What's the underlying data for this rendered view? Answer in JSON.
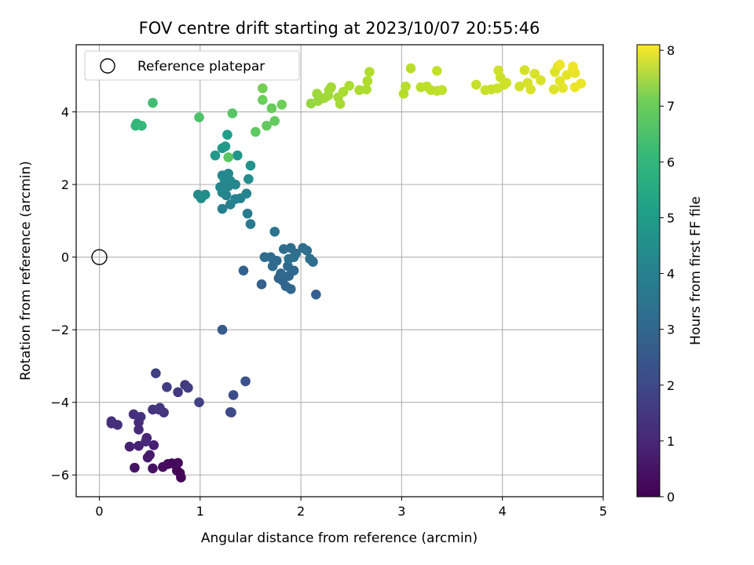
{
  "chart_data": {
    "type": "scatter",
    "title": "FOV centre drift starting at 2023/10/07 20:55:46",
    "xlabel": "Angular distance from reference (arcmin)",
    "ylabel": "Rotation from reference (arcmin)",
    "xlim": [
      -0.23,
      5.0
    ],
    "ylim": [
      -6.6,
      5.85
    ],
    "xticks": [
      "0",
      "1",
      "2",
      "3",
      "4",
      "5"
    ],
    "xtick_values": [
      0,
      1,
      2,
      3,
      4,
      5
    ],
    "yticks": [
      "−6",
      "−4",
      "−2",
      "0",
      "2",
      "4"
    ],
    "ytick_values": [
      -6,
      -4,
      -2,
      0,
      2,
      4
    ],
    "grid": true,
    "colormap": "viridis",
    "colorbar": {
      "label": "Hours from first FF file",
      "range": [
        0,
        8.1
      ],
      "ticks": [
        "0",
        "1",
        "2",
        "3",
        "4",
        "5",
        "6",
        "7",
        "8"
      ],
      "tick_values": [
        0,
        1,
        2,
        3,
        4,
        5,
        6,
        7,
        8
      ]
    },
    "reference_point": {
      "x": 0,
      "y": 0,
      "marker": "open-circle"
    },
    "legend": {
      "position": "top-left",
      "entries": [
        "Reference platepar"
      ]
    },
    "points": [
      {
        "x": 0.81,
        "y": -6.07,
        "t": 0.05
      },
      {
        "x": 0.8,
        "y": -5.95,
        "t": 0.1
      },
      {
        "x": 0.77,
        "y": -5.88,
        "t": 0.12
      },
      {
        "x": 0.72,
        "y": -5.68,
        "t": 0.15
      },
      {
        "x": 0.68,
        "y": -5.7,
        "t": 0.2
      },
      {
        "x": 0.78,
        "y": -5.67,
        "t": 0.22
      },
      {
        "x": 0.63,
        "y": -5.78,
        "t": 0.3
      },
      {
        "x": 0.35,
        "y": -5.8,
        "t": 0.4
      },
      {
        "x": 0.53,
        "y": -5.82,
        "t": 0.38
      },
      {
        "x": 0.48,
        "y": -5.52,
        "t": 0.55
      },
      {
        "x": 0.5,
        "y": -5.45,
        "t": 0.6
      },
      {
        "x": 0.54,
        "y": -5.18,
        "t": 0.7
      },
      {
        "x": 0.3,
        "y": -5.22,
        "t": 0.75
      },
      {
        "x": 0.39,
        "y": -5.2,
        "t": 0.78
      },
      {
        "x": 0.47,
        "y": -4.98,
        "t": 0.85
      },
      {
        "x": 0.46,
        "y": -5.08,
        "t": 0.9
      },
      {
        "x": 0.39,
        "y": -4.75,
        "t": 0.95
      },
      {
        "x": 0.39,
        "y": -4.55,
        "t": 1.0
      },
      {
        "x": 0.12,
        "y": -4.58,
        "t": 1.05
      },
      {
        "x": 0.18,
        "y": -4.62,
        "t": 1.08
      },
      {
        "x": 0.12,
        "y": -4.52,
        "t": 1.1
      },
      {
        "x": 0.34,
        "y": -4.33,
        "t": 1.12
      },
      {
        "x": 0.41,
        "y": -4.4,
        "t": 1.15
      },
      {
        "x": 0.53,
        "y": -4.2,
        "t": 1.2
      },
      {
        "x": 0.59,
        "y": -4.2,
        "t": 1.25
      },
      {
        "x": 0.64,
        "y": -4.28,
        "t": 1.3
      },
      {
        "x": 0.6,
        "y": -4.15,
        "t": 1.32
      },
      {
        "x": 0.78,
        "y": -3.72,
        "t": 1.35
      },
      {
        "x": 0.85,
        "y": -3.52,
        "t": 1.4
      },
      {
        "x": 0.88,
        "y": -3.6,
        "t": 1.42
      },
      {
        "x": 0.67,
        "y": -3.58,
        "t": 1.45
      },
      {
        "x": 0.56,
        "y": -3.2,
        "t": 1.5
      },
      {
        "x": 0.99,
        "y": -4.0,
        "t": 1.6
      },
      {
        "x": 1.3,
        "y": -4.27,
        "t": 1.75
      },
      {
        "x": 1.31,
        "y": -4.28,
        "t": 1.8
      },
      {
        "x": 1.33,
        "y": -3.8,
        "t": 1.9
      },
      {
        "x": 1.45,
        "y": -3.42,
        "t": 2.0
      },
      {
        "x": 1.22,
        "y": -2.0,
        "t": 2.3
      },
      {
        "x": 2.15,
        "y": -1.03,
        "t": 2.45
      },
      {
        "x": 1.61,
        "y": -0.75,
        "t": 2.5
      },
      {
        "x": 1.43,
        "y": -0.37,
        "t": 2.55
      },
      {
        "x": 1.78,
        "y": -0.58,
        "t": 2.6
      },
      {
        "x": 1.82,
        "y": -0.65,
        "t": 2.62
      },
      {
        "x": 1.85,
        "y": -0.8,
        "t": 2.65
      },
      {
        "x": 1.9,
        "y": -0.88,
        "t": 2.68
      },
      {
        "x": 1.88,
        "y": -0.52,
        "t": 2.7
      },
      {
        "x": 1.8,
        "y": -0.45,
        "t": 2.72
      },
      {
        "x": 1.93,
        "y": -0.37,
        "t": 2.74
      },
      {
        "x": 1.87,
        "y": -0.25,
        "t": 2.75
      },
      {
        "x": 1.72,
        "y": -0.25,
        "t": 2.78
      },
      {
        "x": 1.76,
        "y": -0.1,
        "t": 2.8
      },
      {
        "x": 1.7,
        "y": 0.0,
        "t": 2.82
      },
      {
        "x": 1.64,
        "y": 0.0,
        "t": 2.84
      },
      {
        "x": 1.83,
        "y": 0.22,
        "t": 2.86
      },
      {
        "x": 1.9,
        "y": 0.25,
        "t": 2.88
      },
      {
        "x": 1.95,
        "y": 0.1,
        "t": 2.9
      },
      {
        "x": 2.02,
        "y": 0.25,
        "t": 2.92
      },
      {
        "x": 2.06,
        "y": 0.18,
        "t": 2.94
      },
      {
        "x": 2.09,
        "y": -0.05,
        "t": 2.96
      },
      {
        "x": 2.12,
        "y": -0.13,
        "t": 2.98
      },
      {
        "x": 1.93,
        "y": 0.0,
        "t": 3.0
      },
      {
        "x": 1.88,
        "y": -0.05,
        "t": 3.02
      },
      {
        "x": 1.74,
        "y": 0.7,
        "t": 3.1
      },
      {
        "x": 1.5,
        "y": 0.91,
        "t": 3.3
      },
      {
        "x": 1.47,
        "y": 1.2,
        "t": 3.4
      },
      {
        "x": 1.22,
        "y": 1.33,
        "t": 3.5
      },
      {
        "x": 1.3,
        "y": 1.45,
        "t": 3.55
      },
      {
        "x": 1.35,
        "y": 1.6,
        "t": 3.6
      },
      {
        "x": 1.4,
        "y": 1.62,
        "t": 3.62
      },
      {
        "x": 1.46,
        "y": 1.75,
        "t": 3.65
      },
      {
        "x": 1.26,
        "y": 1.7,
        "t": 3.68
      },
      {
        "x": 1.22,
        "y": 1.78,
        "t": 3.7
      },
      {
        "x": 1.2,
        "y": 1.93,
        "t": 3.72
      },
      {
        "x": 1.28,
        "y": 1.95,
        "t": 3.74
      },
      {
        "x": 1.35,
        "y": 2.0,
        "t": 3.76
      },
      {
        "x": 1.3,
        "y": 2.1,
        "t": 3.78
      },
      {
        "x": 1.24,
        "y": 2.15,
        "t": 3.8
      },
      {
        "x": 1.28,
        "y": 2.3,
        "t": 3.82
      },
      {
        "x": 1.22,
        "y": 2.25,
        "t": 3.84
      },
      {
        "x": 0.98,
        "y": 1.72,
        "t": 3.9
      },
      {
        "x": 1.01,
        "y": 1.62,
        "t": 3.92
      },
      {
        "x": 1.05,
        "y": 1.72,
        "t": 3.95
      },
      {
        "x": 1.48,
        "y": 2.15,
        "t": 4.0
      },
      {
        "x": 1.5,
        "y": 2.52,
        "t": 4.1
      },
      {
        "x": 1.37,
        "y": 2.8,
        "t": 4.2
      },
      {
        "x": 1.15,
        "y": 2.8,
        "t": 4.3
      },
      {
        "x": 1.22,
        "y": 3.0,
        "t": 4.35
      },
      {
        "x": 1.25,
        "y": 3.05,
        "t": 4.4
      },
      {
        "x": 1.27,
        "y": 3.37,
        "t": 4.5
      },
      {
        "x": 0.36,
        "y": 3.62,
        "t": 5.3
      },
      {
        "x": 0.37,
        "y": 3.68,
        "t": 5.35
      },
      {
        "x": 0.42,
        "y": 3.62,
        "t": 5.4
      },
      {
        "x": 0.53,
        "y": 4.25,
        "t": 5.6
      },
      {
        "x": 0.99,
        "y": 3.85,
        "t": 5.8
      },
      {
        "x": 1.32,
        "y": 3.96,
        "t": 5.95
      },
      {
        "x": 1.28,
        "y": 2.75,
        "t": 6.0
      },
      {
        "x": 1.55,
        "y": 3.45,
        "t": 6.05
      },
      {
        "x": 1.66,
        "y": 3.62,
        "t": 6.1
      },
      {
        "x": 1.74,
        "y": 3.75,
        "t": 6.15
      },
      {
        "x": 1.71,
        "y": 4.1,
        "t": 6.2
      },
      {
        "x": 1.62,
        "y": 4.33,
        "t": 6.25
      },
      {
        "x": 1.81,
        "y": 4.2,
        "t": 6.3
      },
      {
        "x": 1.62,
        "y": 4.65,
        "t": 6.35
      },
      {
        "x": 2.1,
        "y": 4.23,
        "t": 6.8
      },
      {
        "x": 2.17,
        "y": 4.3,
        "t": 6.85
      },
      {
        "x": 2.16,
        "y": 4.5,
        "t": 6.9
      },
      {
        "x": 2.23,
        "y": 4.38,
        "t": 6.92
      },
      {
        "x": 2.27,
        "y": 4.45,
        "t": 6.94
      },
      {
        "x": 2.28,
        "y": 4.6,
        "t": 6.96
      },
      {
        "x": 2.3,
        "y": 4.68,
        "t": 6.98
      },
      {
        "x": 2.37,
        "y": 4.4,
        "t": 7.0
      },
      {
        "x": 2.39,
        "y": 4.22,
        "t": 7.02
      },
      {
        "x": 2.42,
        "y": 4.55,
        "t": 7.04
      },
      {
        "x": 2.48,
        "y": 4.72,
        "t": 7.06
      },
      {
        "x": 2.58,
        "y": 4.6,
        "t": 7.08
      },
      {
        "x": 2.65,
        "y": 4.62,
        "t": 7.1
      },
      {
        "x": 2.66,
        "y": 4.85,
        "t": 7.12
      },
      {
        "x": 2.68,
        "y": 5.1,
        "t": 7.14
      },
      {
        "x": 3.02,
        "y": 4.5,
        "t": 7.2
      },
      {
        "x": 3.04,
        "y": 4.7,
        "t": 7.22
      },
      {
        "x": 3.09,
        "y": 5.2,
        "t": 7.24
      },
      {
        "x": 3.19,
        "y": 4.68,
        "t": 7.26
      },
      {
        "x": 3.25,
        "y": 4.7,
        "t": 7.28
      },
      {
        "x": 3.29,
        "y": 4.6,
        "t": 7.3
      },
      {
        "x": 3.35,
        "y": 4.58,
        "t": 7.32
      },
      {
        "x": 3.4,
        "y": 4.6,
        "t": 7.34
      },
      {
        "x": 3.35,
        "y": 5.13,
        "t": 7.36
      },
      {
        "x": 3.74,
        "y": 4.75,
        "t": 7.4
      },
      {
        "x": 3.83,
        "y": 4.6,
        "t": 7.42
      },
      {
        "x": 3.89,
        "y": 4.62,
        "t": 7.44
      },
      {
        "x": 3.95,
        "y": 4.65,
        "t": 7.46
      },
      {
        "x": 3.98,
        "y": 4.95,
        "t": 7.48
      },
      {
        "x": 4.02,
        "y": 4.75,
        "t": 7.5
      },
      {
        "x": 4.04,
        "y": 4.8,
        "t": 7.52
      },
      {
        "x": 3.96,
        "y": 5.14,
        "t": 7.54
      },
      {
        "x": 4.17,
        "y": 4.7,
        "t": 7.56
      },
      {
        "x": 4.22,
        "y": 5.15,
        "t": 7.58
      },
      {
        "x": 4.25,
        "y": 4.8,
        "t": 7.6
      },
      {
        "x": 4.28,
        "y": 4.62,
        "t": 7.62
      },
      {
        "x": 4.32,
        "y": 5.05,
        "t": 7.64
      },
      {
        "x": 4.38,
        "y": 4.87,
        "t": 7.66
      },
      {
        "x": 4.51,
        "y": 4.62,
        "t": 7.7
      },
      {
        "x": 4.52,
        "y": 5.1,
        "t": 7.72
      },
      {
        "x": 4.55,
        "y": 5.25,
        "t": 7.74
      },
      {
        "x": 4.57,
        "y": 4.85,
        "t": 7.76
      },
      {
        "x": 4.6,
        "y": 4.66,
        "t": 7.78
      },
      {
        "x": 4.64,
        "y": 5.02,
        "t": 7.8
      },
      {
        "x": 4.7,
        "y": 5.2,
        "t": 7.82
      },
      {
        "x": 4.72,
        "y": 5.07,
        "t": 7.84
      },
      {
        "x": 4.72,
        "y": 4.68,
        "t": 7.86
      },
      {
        "x": 4.78,
        "y": 4.78,
        "t": 7.88
      },
      {
        "x": 4.57,
        "y": 5.3,
        "t": 7.9
      },
      {
        "x": 4.7,
        "y": 5.25,
        "t": 7.92
      }
    ]
  }
}
